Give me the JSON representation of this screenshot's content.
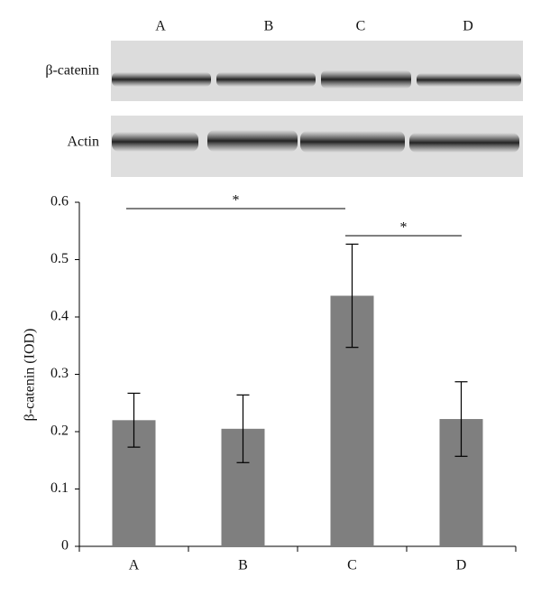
{
  "blot": {
    "lanes": [
      "A",
      "B",
      "C",
      "D"
    ],
    "rows": [
      "β-catenin",
      "Actin"
    ]
  },
  "chart_data": {
    "type": "bar",
    "ylabel": "β-catenin (IOD)",
    "categories": [
      "A",
      "B",
      "C",
      "D"
    ],
    "values": [
      0.22,
      0.205,
      0.437,
      0.222
    ],
    "errors": [
      0.047,
      0.059,
      0.09,
      0.065
    ],
    "color": "#7f7f7f",
    "ylim": [
      0,
      0.6
    ],
    "yticks": [
      0,
      0.1,
      0.2,
      0.3,
      0.4,
      0.5,
      0.6
    ],
    "annotations": [
      "*",
      "*"
    ]
  }
}
